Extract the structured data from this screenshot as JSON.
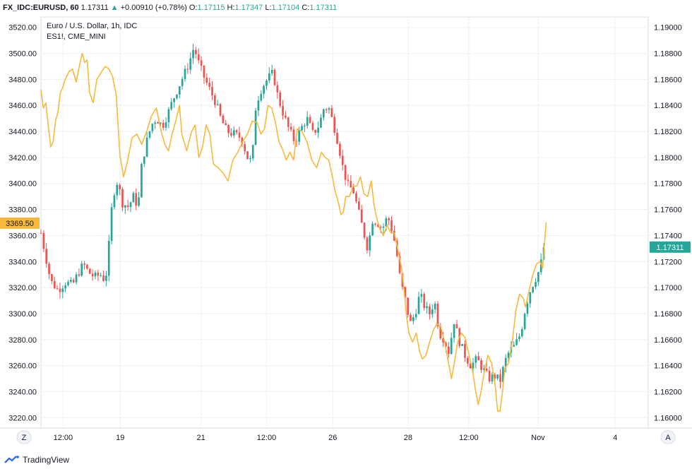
{
  "header": {
    "symbol": "FX_IDC:EURUSD, 60",
    "last": "1.17311",
    "change_arrow": "▲",
    "change": "+0.00910 (+0.78%)",
    "o_label": "O:",
    "o_value": "1.17115",
    "h_label": "H:",
    "h_value": "1.17347",
    "l_label": "L:",
    "l_value": "1.17104",
    "c_label": "C:",
    "c_value": "1.17311"
  },
  "legend": {
    "main": "Euro / U.S. Dollar, 1h, IDC",
    "compare": "ES1!, CME_MINI"
  },
  "scale_buttons": {
    "left": "Z",
    "right": "A"
  },
  "footer": {
    "brand": "TradingView"
  },
  "colors": {
    "up": "#26a69a",
    "down": "#ef5350",
    "compare_line": "#f6b93b",
    "left_price_tag": "#f6b93b",
    "right_price_tag": "#26a69a",
    "grid": "#eef0f3"
  },
  "chart_data": {
    "type": "line",
    "left_axis": {
      "ticks": [
        "3520.00",
        "3500.00",
        "3480.00",
        "3460.00",
        "3440.00",
        "3420.00",
        "3400.00",
        "3380.00",
        "3360.00",
        "3340.00",
        "3320.00",
        "3300.00",
        "3280.00",
        "3260.00",
        "3240.00",
        "3220.00"
      ],
      "range": [
        3212,
        3528
      ],
      "current": "3369.50"
    },
    "right_axis": {
      "ticks": [
        "1.19000",
        "1.18800",
        "1.18600",
        "1.18400",
        "1.18200",
        "1.18000",
        "1.17800",
        "1.17600",
        "1.17400",
        "1.17200",
        "1.17000",
        "1.16800",
        "1.16600",
        "1.16400",
        "1.16200",
        "1.16000"
      ],
      "range": [
        1.1592,
        1.1908
      ],
      "current": "1.17311"
    },
    "x_ticks": [
      "12:00",
      "19",
      "21",
      "12:00",
      "26",
      "28",
      "12:00",
      "Nov",
      "4"
    ],
    "x_tick_positions": [
      0.0365,
      0.1305,
      0.2635,
      0.3715,
      0.4805,
      0.6045,
      0.7045,
      0.8185,
      0.9455
    ],
    "grid": true,
    "series": [
      {
        "name": "Euro / U.S. Dollar, 1h, IDC",
        "kind": "candles",
        "close_path": [
          [
            0.0,
            1.1742
          ],
          [
            0.006,
            1.1728
          ],
          [
            0.016,
            1.1705
          ],
          [
            0.028,
            1.1698
          ],
          [
            0.04,
            1.1704
          ],
          [
            0.052,
            1.1702
          ],
          [
            0.06,
            1.171
          ],
          [
            0.07,
            1.1718
          ],
          [
            0.078,
            1.1712
          ],
          [
            0.088,
            1.1708
          ],
          [
            0.098,
            1.171
          ],
          [
            0.106,
            1.1705
          ],
          [
            0.11,
            1.1721
          ],
          [
            0.118,
            1.177
          ],
          [
            0.126,
            1.1782
          ],
          [
            0.134,
            1.1765
          ],
          [
            0.144,
            1.1762
          ],
          [
            0.152,
            1.177
          ],
          [
            0.16,
            1.1762
          ],
          [
            0.166,
            1.1795
          ],
          [
            0.174,
            1.1812
          ],
          [
            0.182,
            1.1825
          ],
          [
            0.19,
            1.183
          ],
          [
            0.2,
            1.1824
          ],
          [
            0.21,
            1.1835
          ],
          [
            0.218,
            1.1845
          ],
          [
            0.23,
            1.1858
          ],
          [
            0.24,
            1.1868
          ],
          [
            0.246,
            1.1876
          ],
          [
            0.252,
            1.1885
          ],
          [
            0.26,
            1.1872
          ],
          [
            0.27,
            1.186
          ],
          [
            0.28,
            1.185
          ],
          [
            0.288,
            1.1842
          ],
          [
            0.296,
            1.183
          ],
          [
            0.306,
            1.182
          ],
          [
            0.318,
            1.1818
          ],
          [
            0.33,
            1.1815
          ],
          [
            0.34,
            1.18
          ],
          [
            0.348,
            1.1796
          ],
          [
            0.352,
            1.1835
          ],
          [
            0.36,
            1.185
          ],
          [
            0.368,
            1.1857
          ],
          [
            0.376,
            1.1862
          ],
          [
            0.382,
            1.1865
          ],
          [
            0.39,
            1.1847
          ],
          [
            0.398,
            1.1835
          ],
          [
            0.408,
            1.1822
          ],
          [
            0.418,
            1.1812
          ],
          [
            0.428,
            1.1822
          ],
          [
            0.438,
            1.183
          ],
          [
            0.448,
            1.1818
          ],
          [
            0.458,
            1.1825
          ],
          [
            0.466,
            1.1838
          ],
          [
            0.474,
            1.1838
          ],
          [
            0.482,
            1.1825
          ],
          [
            0.49,
            1.181
          ],
          [
            0.498,
            1.179
          ],
          [
            0.506,
            1.1778
          ],
          [
            0.514,
            1.1775
          ],
          [
            0.522,
            1.176
          ],
          [
            0.53,
            1.1745
          ],
          [
            0.538,
            1.173
          ],
          [
            0.546,
            1.1752
          ],
          [
            0.554,
            1.175
          ],
          [
            0.562,
            1.1745
          ],
          [
            0.568,
            1.1752
          ],
          [
            0.574,
            1.1752
          ],
          [
            0.584,
            1.1732
          ],
          [
            0.592,
            1.1705
          ],
          [
            0.6,
            1.169
          ],
          [
            0.608,
            1.1672
          ],
          [
            0.616,
            1.168
          ],
          [
            0.624,
            1.1695
          ],
          [
            0.632,
            1.1685
          ],
          [
            0.64,
            1.168
          ],
          [
            0.648,
            1.169
          ],
          [
            0.656,
            1.1665
          ],
          [
            0.664,
            1.166
          ],
          [
            0.672,
            1.165
          ],
          [
            0.68,
            1.1675
          ],
          [
            0.688,
            1.166
          ],
          [
            0.698,
            1.1648
          ],
          [
            0.708,
            1.164
          ],
          [
            0.718,
            1.1645
          ],
          [
            0.728,
            1.1637
          ],
          [
            0.738,
            1.163
          ],
          [
            0.748,
            1.1632
          ],
          [
            0.756,
            1.1628
          ],
          [
            0.764,
            1.1643
          ],
          [
            0.772,
            1.1652
          ],
          [
            0.78,
            1.1655
          ],
          [
            0.79,
            1.1665
          ],
          [
            0.798,
            1.1685
          ],
          [
            0.806,
            1.1698
          ],
          [
            0.812,
            1.1705
          ],
          [
            0.818,
            1.171
          ],
          [
            0.824,
            1.172
          ],
          [
            0.828,
            1.1731
          ]
        ]
      },
      {
        "name": "ES1!, CME_MINI",
        "kind": "line",
        "path": [
          [
            0.0,
            3472
          ],
          [
            0.004,
            3458
          ],
          [
            0.008,
            3462
          ],
          [
            0.012,
            3445
          ],
          [
            0.016,
            3428
          ],
          [
            0.02,
            3432
          ],
          [
            0.024,
            3448
          ],
          [
            0.028,
            3455
          ],
          [
            0.032,
            3470
          ],
          [
            0.036,
            3474
          ],
          [
            0.04,
            3480
          ],
          [
            0.046,
            3486
          ],
          [
            0.052,
            3488
          ],
          [
            0.058,
            3478
          ],
          [
            0.064,
            3492
          ],
          [
            0.068,
            3500
          ],
          [
            0.072,
            3493
          ],
          [
            0.076,
            3495
          ],
          [
            0.08,
            3470
          ],
          [
            0.086,
            3462
          ],
          [
            0.092,
            3480
          ],
          [
            0.1,
            3486
          ],
          [
            0.106,
            3490
          ],
          [
            0.112,
            3488
          ],
          [
            0.118,
            3482
          ],
          [
            0.124,
            3468
          ],
          [
            0.13,
            3422
          ],
          [
            0.136,
            3405
          ],
          [
            0.142,
            3416
          ],
          [
            0.15,
            3435
          ],
          [
            0.158,
            3438
          ],
          [
            0.166,
            3430
          ],
          [
            0.174,
            3440
          ],
          [
            0.182,
            3452
          ],
          [
            0.19,
            3458
          ],
          [
            0.198,
            3440
          ],
          [
            0.204,
            3430
          ],
          [
            0.21,
            3425
          ],
          [
            0.216,
            3438
          ],
          [
            0.222,
            3448
          ],
          [
            0.228,
            3460
          ],
          [
            0.232,
            3438
          ],
          [
            0.24,
            3425
          ],
          [
            0.248,
            3440
          ],
          [
            0.254,
            3445
          ],
          [
            0.26,
            3420
          ],
          [
            0.266,
            3428
          ],
          [
            0.272,
            3445
          ],
          [
            0.278,
            3438
          ],
          [
            0.284,
            3415
          ],
          [
            0.292,
            3412
          ],
          [
            0.3,
            3408
          ],
          [
            0.308,
            3402
          ],
          [
            0.316,
            3418
          ],
          [
            0.324,
            3424
          ],
          [
            0.332,
            3432
          ],
          [
            0.34,
            3438
          ],
          [
            0.348,
            3448
          ],
          [
            0.356,
            3447
          ],
          [
            0.362,
            3438
          ],
          [
            0.368,
            3442
          ],
          [
            0.374,
            3460
          ],
          [
            0.38,
            3458
          ],
          [
            0.386,
            3447
          ],
          [
            0.392,
            3432
          ],
          [
            0.398,
            3426
          ],
          [
            0.404,
            3418
          ],
          [
            0.41,
            3424
          ],
          [
            0.416,
            3418
          ],
          [
            0.422,
            3442
          ],
          [
            0.43,
            3440
          ],
          [
            0.438,
            3432
          ],
          [
            0.446,
            3418
          ],
          [
            0.454,
            3412
          ],
          [
            0.462,
            3424
          ],
          [
            0.468,
            3420
          ],
          [
            0.474,
            3418
          ],
          [
            0.48,
            3405
          ],
          [
            0.484,
            3395
          ],
          [
            0.49,
            3385
          ],
          [
            0.494,
            3376
          ],
          [
            0.498,
            3378
          ],
          [
            0.502,
            3390
          ],
          [
            0.508,
            3390
          ],
          [
            0.514,
            3398
          ],
          [
            0.52,
            3398
          ],
          [
            0.526,
            3405
          ],
          [
            0.532,
            3392
          ],
          [
            0.538,
            3390
          ],
          [
            0.544,
            3402
          ],
          [
            0.548,
            3385
          ],
          [
            0.552,
            3375
          ],
          [
            0.558,
            3365
          ],
          [
            0.564,
            3360
          ],
          [
            0.57,
            3368
          ],
          [
            0.576,
            3362
          ],
          [
            0.582,
            3362
          ],
          [
            0.588,
            3348
          ],
          [
            0.594,
            3335
          ],
          [
            0.598,
            3318
          ],
          [
            0.602,
            3298
          ],
          [
            0.606,
            3285
          ],
          [
            0.612,
            3278
          ],
          [
            0.618,
            3285
          ],
          [
            0.624,
            3270
          ],
          [
            0.628,
            3265
          ],
          [
            0.634,
            3268
          ],
          [
            0.64,
            3278
          ],
          [
            0.646,
            3287
          ],
          [
            0.652,
            3292
          ],
          [
            0.658,
            3290
          ],
          [
            0.664,
            3280
          ],
          [
            0.67,
            3265
          ],
          [
            0.676,
            3250
          ],
          [
            0.68,
            3260
          ],
          [
            0.686,
            3278
          ],
          [
            0.692,
            3285
          ],
          [
            0.698,
            3282
          ],
          [
            0.704,
            3270
          ],
          [
            0.71,
            3258
          ],
          [
            0.716,
            3240
          ],
          [
            0.72,
            3230
          ],
          [
            0.724,
            3238
          ],
          [
            0.73,
            3255
          ],
          [
            0.736,
            3268
          ],
          [
            0.742,
            3262
          ],
          [
            0.748,
            3245
          ],
          [
            0.752,
            3225
          ],
          [
            0.756,
            3225
          ],
          [
            0.76,
            3240
          ],
          [
            0.764,
            3258
          ],
          [
            0.77,
            3262
          ],
          [
            0.776,
            3278
          ],
          [
            0.782,
            3302
          ],
          [
            0.788,
            3315
          ],
          [
            0.794,
            3312
          ],
          [
            0.798,
            3305
          ],
          [
            0.804,
            3318
          ],
          [
            0.81,
            3330
          ],
          [
            0.816,
            3338
          ],
          [
            0.822,
            3340
          ],
          [
            0.826,
            3335
          ],
          [
            0.832,
            3370
          ]
        ]
      }
    ]
  }
}
